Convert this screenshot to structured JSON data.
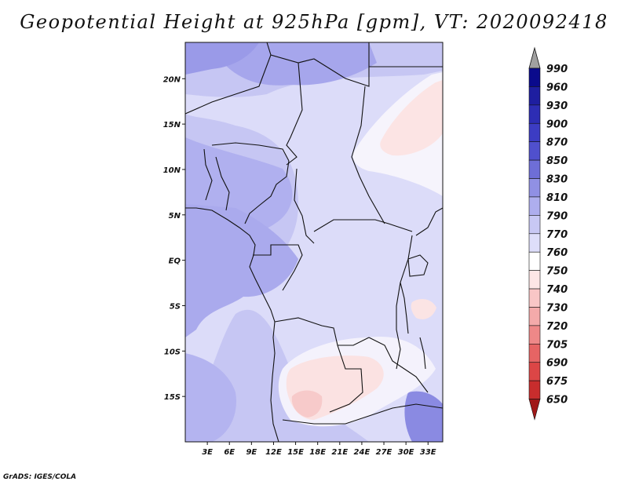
{
  "title": "Geopotential Height at 925hPa [gpm], VT: 2020092418",
  "credit": "GrADS: IGES/COLA",
  "map": {
    "lon_range": [
      0,
      35
    ],
    "lat_range": [
      -20,
      24
    ],
    "lat_ticks": [
      {
        "lat": 20,
        "label": "20N"
      },
      {
        "lat": 15,
        "label": "15N"
      },
      {
        "lat": 10,
        "label": "10N"
      },
      {
        "lat": 5,
        "label": "5N"
      },
      {
        "lat": 0,
        "label": "EQ"
      },
      {
        "lat": -5,
        "label": "5S"
      },
      {
        "lat": -10,
        "label": "10S"
      },
      {
        "lat": -15,
        "label": "15S"
      }
    ],
    "lon_ticks": [
      {
        "lon": 3,
        "label": "3E"
      },
      {
        "lon": 6,
        "label": "6E"
      },
      {
        "lon": 9,
        "label": "9E"
      },
      {
        "lon": 12,
        "label": "12E"
      },
      {
        "lon": 15,
        "label": "15E"
      },
      {
        "lon": 18,
        "label": "18E"
      },
      {
        "lon": 21,
        "label": "21E"
      },
      {
        "lon": 24,
        "label": "24E"
      },
      {
        "lon": 27,
        "label": "27E"
      },
      {
        "lon": 30,
        "label": "30E"
      },
      {
        "lon": 33,
        "label": "33E"
      }
    ]
  },
  "colorbar": {
    "levels": [
      {
        "value": "990",
        "color": "#0a0a8c"
      },
      {
        "value": "960",
        "color": "#1e1ea0"
      },
      {
        "value": "930",
        "color": "#2d2db4"
      },
      {
        "value": "900",
        "color": "#3c3cc3"
      },
      {
        "value": "870",
        "color": "#5050cd"
      },
      {
        "value": "850",
        "color": "#6e6ed7"
      },
      {
        "value": "830",
        "color": "#9090e4"
      },
      {
        "value": "810",
        "color": "#aeaeee"
      },
      {
        "value": "790",
        "color": "#c8c8f4"
      },
      {
        "value": "770",
        "color": "#dedefa"
      },
      {
        "value": "760",
        "color": "#ffffff"
      },
      {
        "value": "750",
        "color": "#fde6e6"
      },
      {
        "value": "740",
        "color": "#f9c6c6"
      },
      {
        "value": "730",
        "color": "#f4aaaa"
      },
      {
        "value": "720",
        "color": "#ee8888"
      },
      {
        "value": "705",
        "color": "#e66464"
      },
      {
        "value": "690",
        "color": "#dc4646"
      },
      {
        "value": "675",
        "color": "#c82d2d"
      },
      {
        "value": "650",
        "color": "#a01818"
      }
    ],
    "top_arrow_color": "#a0a0a0"
  }
}
